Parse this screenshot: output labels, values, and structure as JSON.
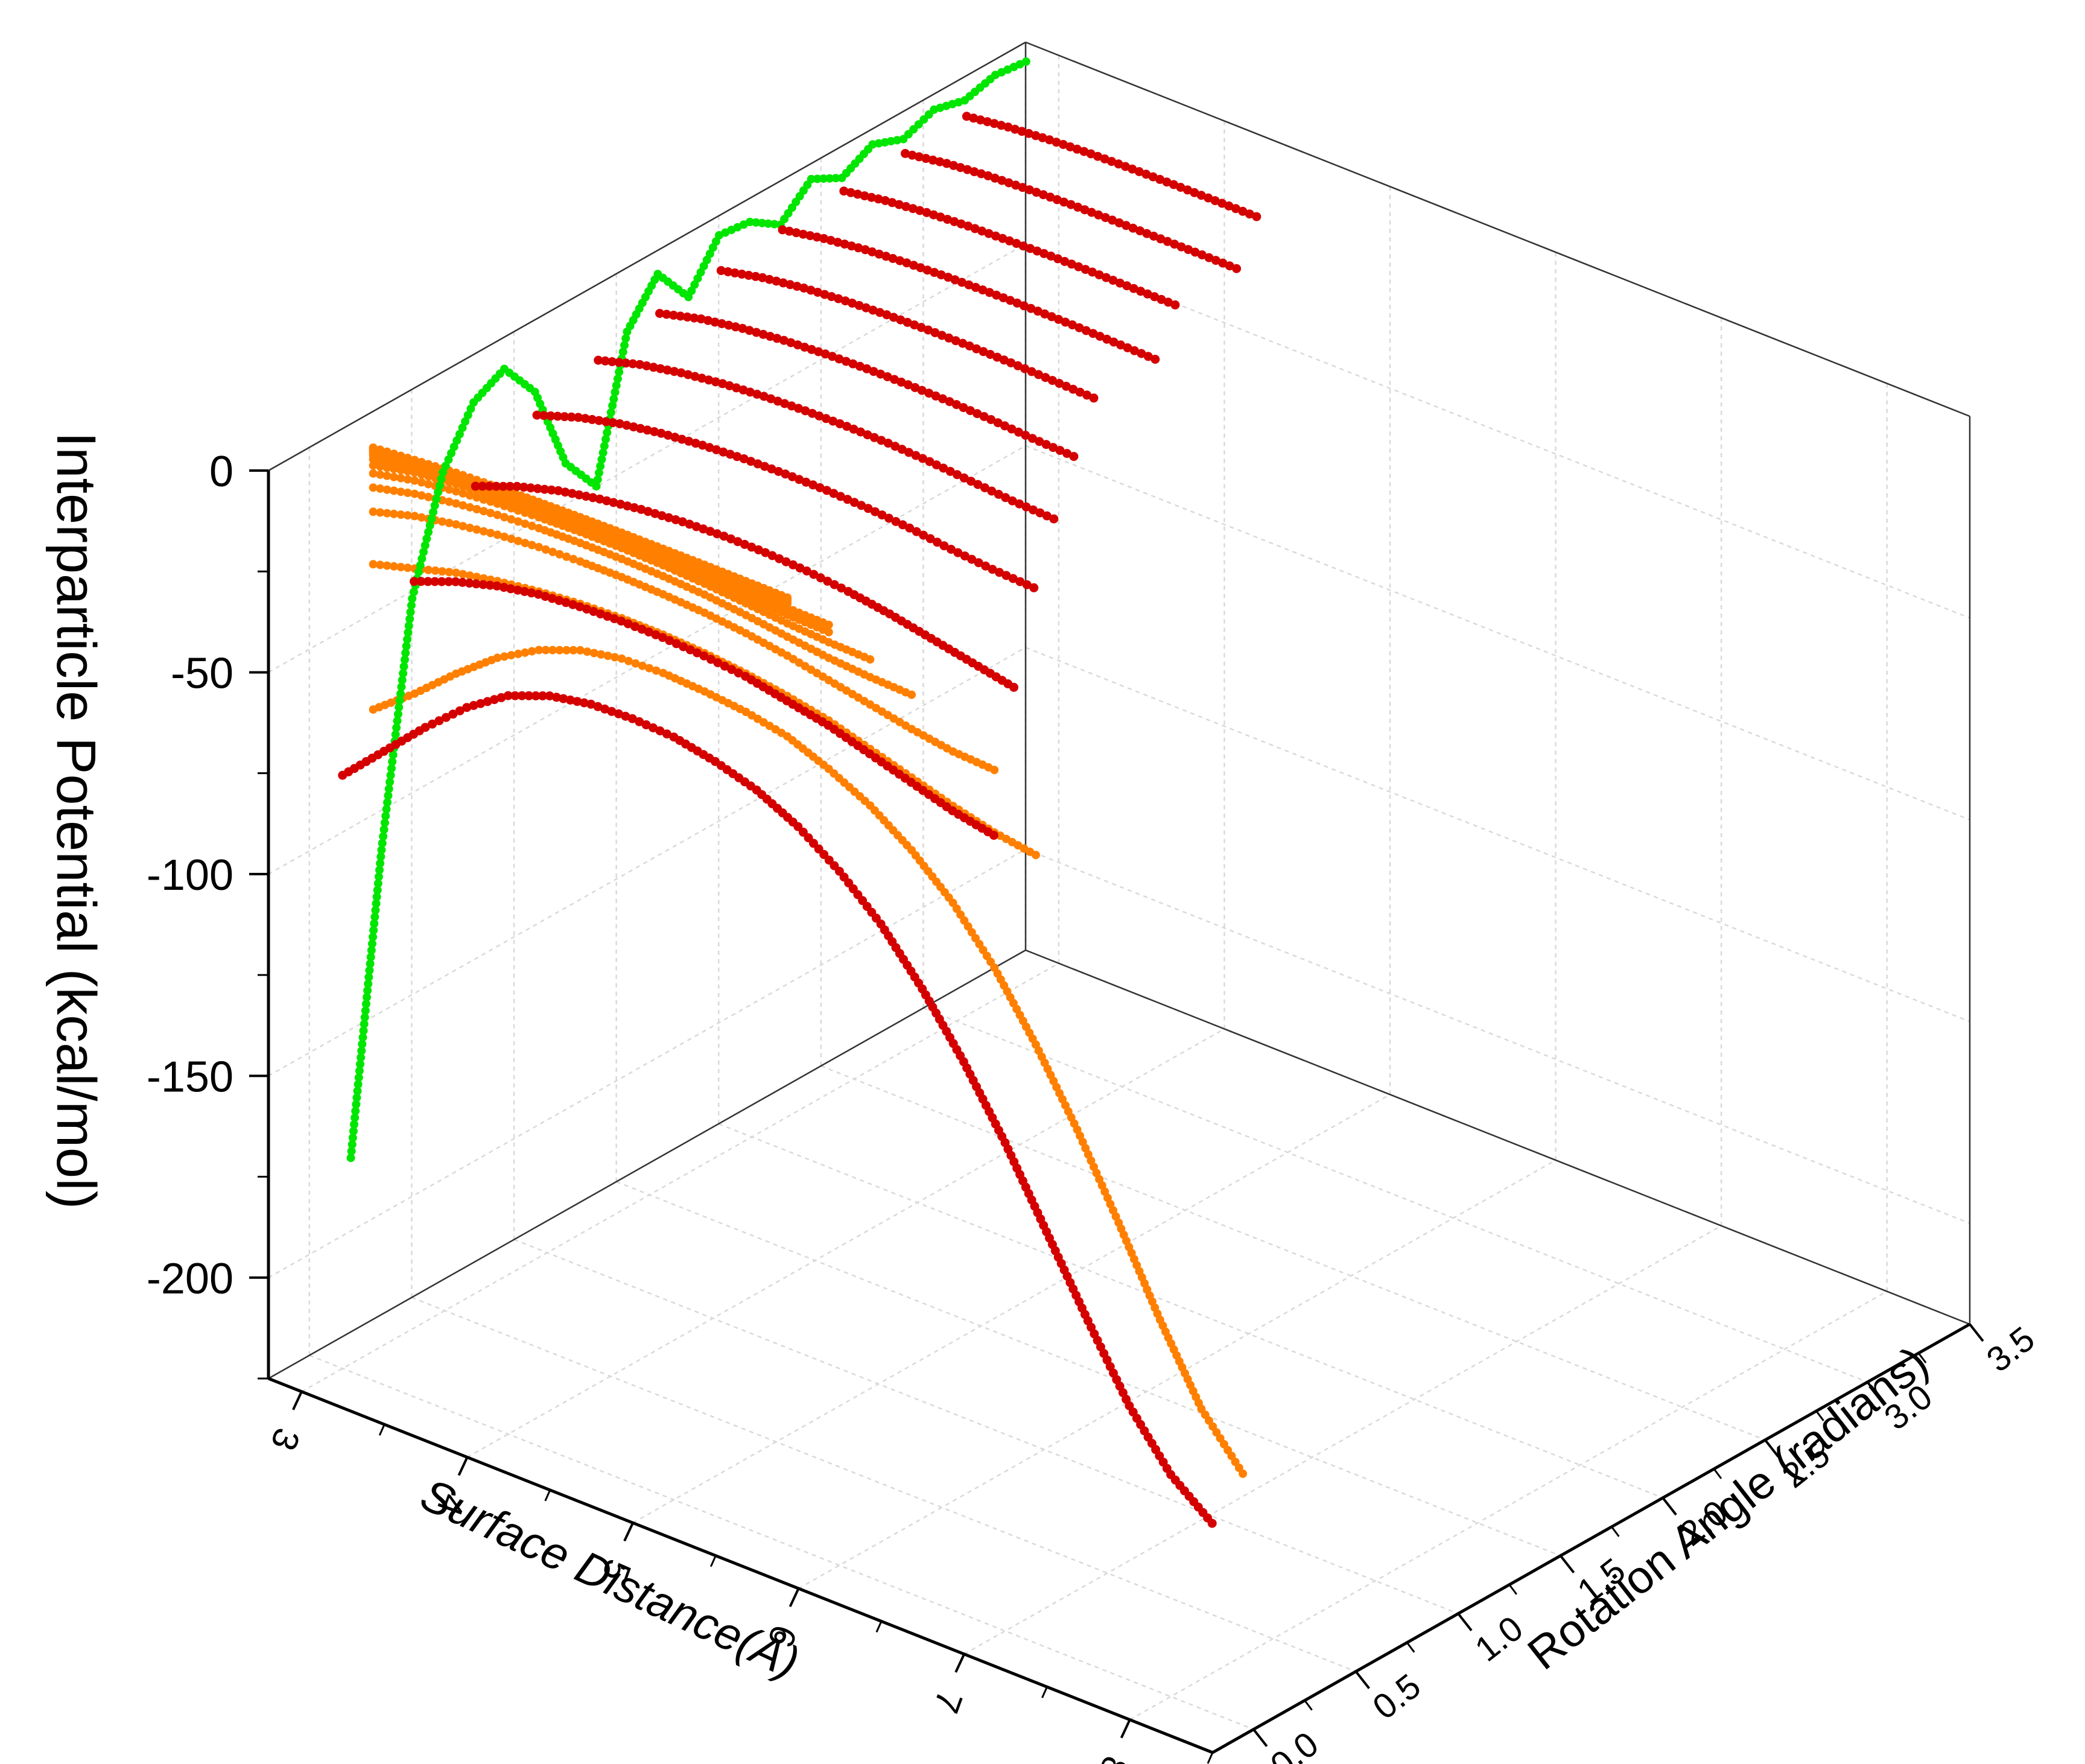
{
  "chart_data": {
    "type": "line",
    "projection": "3d",
    "grid": true,
    "legend": "none",
    "axes": {
      "z": {
        "label": "Interparticle Potential (kcal/mol)",
        "range": [
          -225,
          0
        ],
        "ticks": [
          0,
          -50,
          -100,
          -150,
          -200
        ],
        "tick_labels": [
          "0",
          "-50",
          "-100",
          "-150",
          "-200"
        ]
      },
      "x": {
        "label": "Surface Distance(Å)",
        "range": [
          2.8,
          8.5
        ],
        "ticks": [
          3,
          4,
          5,
          6,
          7,
          8
        ],
        "tick_labels": [
          "3",
          "4",
          "5",
          "6",
          "7",
          "8"
        ]
      },
      "y": {
        "label": "Rotation Angle (radians)",
        "range": [
          -0.2,
          3.5
        ],
        "ticks": [
          0.0,
          0.5,
          1.0,
          1.5,
          2.0,
          2.5,
          3.0,
          3.5
        ],
        "tick_labels": [
          "0.0",
          "0.5",
          "1.0",
          "1.5",
          "2.0",
          "2.5",
          "3.0",
          "3.5"
        ]
      }
    },
    "colors": {
      "orange": "#ff8000",
      "red": "#d40000",
      "green": "#00e600",
      "grid": "#d9d9d9",
      "frame": "#000000"
    },
    "orange_projection": {
      "plane": "rotation-angle = 3.5 (back wall)",
      "x": [
        3.0,
        3.25,
        3.5,
        3.75,
        4.0,
        4.25,
        4.5,
        4.75,
        5.0,
        5.25,
        5.5,
        5.75,
        6.0,
        6.25,
        6.5,
        6.75,
        7.0,
        7.25,
        7.5,
        7.75,
        8.0,
        8.25
      ],
      "curves": [
        [
          -66,
          -58,
          -49,
          -41,
          -35,
          -31,
          -29,
          -28.5,
          -29,
          -30,
          -32,
          -36,
          -41,
          -48,
          -57,
          -69,
          -84,
          -101,
          -120,
          -140,
          -158,
          -170
        ],
        [
          -30,
          -27,
          -24,
          -22,
          -20.5,
          -19.5,
          -19,
          -19,
          -19.5,
          -20.5,
          -22,
          -24,
          -27,
          -30,
          -33,
          -35.5,
          -37
        ],
        [
          -17,
          -14,
          -12,
          -10.5,
          -9.5,
          -9,
          -8.8,
          -9,
          -9.5,
          -10.5,
          -12,
          -14,
          -16,
          -18,
          -19.5,
          -20
        ],
        [
          -11,
          -8.5,
          -6.8,
          -5.6,
          -4.8,
          -4.4,
          -4.3,
          -4.5,
          -5,
          -6,
          -7.3,
          -8.5,
          -9.2,
          -9.5
        ],
        [
          -7.5,
          -5.2,
          -3.8,
          -2.8,
          -2.1,
          -1.7,
          -1.6,
          -1.8,
          -2.3,
          -3.1,
          -4,
          -4.6,
          -4.8
        ],
        [
          -5.5,
          -3.2,
          -2,
          -1.2,
          -0.6,
          -0.3,
          -0.2,
          -0.3,
          -0.7,
          -1.3,
          -1.9,
          -2.1
        ],
        [
          -4,
          -2.2,
          -1,
          -0.3,
          0.2,
          0.4,
          0.5,
          0.5,
          0.3,
          0,
          -0.2,
          -0.3
        ],
        [
          -3,
          -1.6,
          -0.5,
          0.2,
          0.7,
          1,
          1.2,
          1.2,
          1.1,
          0.9,
          0.8
        ],
        [
          -2.3,
          -1,
          0,
          0.6,
          1,
          1.3,
          1.5,
          1.6,
          1.6,
          1.5,
          1.5
        ],
        [
          -1.8,
          -0.6,
          0.3,
          0.9,
          1.3,
          1.6,
          1.8,
          1.9,
          2,
          2,
          2
        ],
        [
          -1.4,
          -0.3,
          0.6,
          1.1,
          1.5,
          1.8,
          2,
          2.1,
          2.2,
          2.2,
          2.2
        ],
        [
          -1.1,
          -0.1,
          0.8,
          1.3,
          1.7,
          2,
          2.2,
          2.3,
          2.4,
          2.4,
          2.4
        ]
      ]
    },
    "red_series": {
      "x": [
        3.0,
        3.25,
        3.5,
        3.75,
        4.0,
        4.25,
        4.5,
        4.75,
        5.0,
        5.25,
        5.5,
        5.75,
        6.0,
        6.25,
        6.5,
        6.75,
        7.0,
        7.25,
        7.5,
        7.75,
        8.0,
        8.25
      ],
      "slices": [
        {
          "angle": 0.0,
          "values": [
            -78,
            -68,
            -58,
            -49,
            -42,
            -38,
            -36,
            -35.5,
            -36,
            -38,
            -41,
            -46,
            -53,
            -62,
            -74,
            -88,
            -104,
            -122,
            -140,
            -157,
            -170,
            -178
          ]
        },
        {
          "angle": 0.35,
          "values": [
            -40,
            -36,
            -33,
            -31,
            -30,
            -29.5,
            -29.5,
            -30,
            -31,
            -33,
            -35,
            -38,
            -41,
            -44,
            -46
          ]
        },
        {
          "angle": 0.65,
          "values": [
            -25,
            -21,
            -18,
            -16,
            -14.5,
            -13.5,
            -13,
            -13,
            -13.5,
            -14.5,
            -16,
            -18,
            -20,
            -22
          ]
        },
        {
          "angle": 0.95,
          "values": [
            -16,
            -12.5,
            -10,
            -8.3,
            -7.2,
            -6.5,
            -6.2,
            -6.2,
            -6.6,
            -7.4,
            -8.6,
            -9.5,
            -10
          ]
        },
        {
          "angle": 1.25,
          "values": [
            -11,
            -8,
            -6,
            -4.6,
            -3.7,
            -3.2,
            -3,
            -3.1,
            -3.6,
            -4.4,
            -5.2,
            -5.6
          ]
        },
        {
          "angle": 1.55,
          "values": [
            -8,
            -5.3,
            -3.6,
            -2.5,
            -1.8,
            -1.4,
            -1.3,
            -1.4,
            -1.8,
            -2.4,
            -2.8
          ]
        },
        {
          "angle": 1.85,
          "values": [
            -6,
            -3.7,
            -2.2,
            -1.3,
            -0.7,
            -0.4,
            -0.3,
            -0.4,
            -0.7,
            -1
          ]
        },
        {
          "angle": 2.15,
          "values": [
            -4.5,
            -2.6,
            -1.3,
            -0.5,
            0,
            0.3,
            0.4,
            0.4,
            0.2,
            0
          ]
        },
        {
          "angle": 2.45,
          "values": [
            -3.5,
            -1.8,
            -0.7,
            0,
            0.4,
            0.7,
            0.8,
            0.8,
            0.8
          ]
        },
        {
          "angle": 2.75,
          "values": [
            -2.8,
            -1.2,
            -0.2,
            0.4,
            0.8,
            1,
            1.1,
            1.2,
            1.2
          ]
        },
        {
          "angle": 3.05,
          "values": [
            -2.2,
            -0.8,
            0.1,
            0.7,
            1,
            1.2,
            1.3,
            1.4
          ]
        }
      ]
    },
    "green_projection": {
      "plane": "surface-distance = 2.8 (side wall)",
      "angle": [
        0.0,
        0.15,
        0.3,
        0.45,
        0.6,
        0.75,
        0.9,
        1.05,
        1.2,
        1.35,
        1.5,
        1.65,
        1.8,
        1.95,
        2.1,
        2.25,
        2.4,
        2.55,
        2.7,
        2.85,
        3.0,
        3.15,
        3.3
      ],
      "values": [
        -172,
        -100,
        -42,
        -15,
        -2,
        2,
        -8,
        -30,
        -40,
        -6,
        4,
        -6,
        5,
        4,
        -1,
        6,
        2,
        6,
        3,
        6,
        4,
        6,
        5
      ]
    }
  }
}
